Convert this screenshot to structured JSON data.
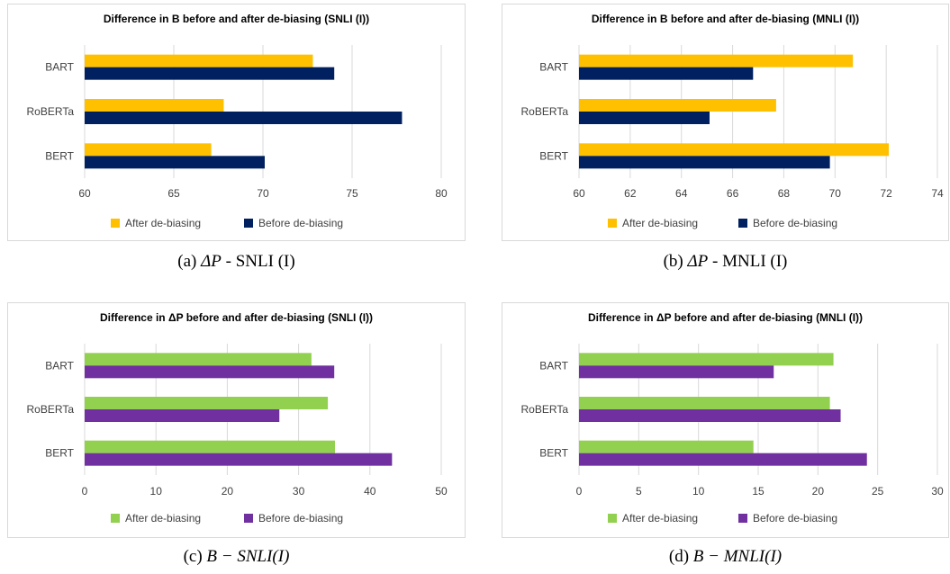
{
  "chart_data": [
    {
      "type": "bar",
      "orientation": "horizontal",
      "title": "Difference in B before and after de-biasing (SNLI (I))",
      "categories": [
        "BART",
        "RoBERTa",
        "BERT"
      ],
      "series": [
        {
          "name": "After de-biasing",
          "values": [
            72.8,
            67.8,
            67.1
          ],
          "color": "#FFC000"
        },
        {
          "name": "Before de-biasing",
          "values": [
            74.0,
            77.8,
            70.1
          ],
          "color": "#002060"
        }
      ],
      "xlim": [
        60,
        80
      ],
      "xticks": [
        60,
        65,
        70,
        75,
        80
      ],
      "grid": "vertical",
      "legend": "bottom",
      "caption_prefix": "(a) ",
      "caption_math": "ΔP",
      "caption_suffix": " - SNLI (I)"
    },
    {
      "type": "bar",
      "orientation": "horizontal",
      "title": "Difference in B before and after de-biasing (MNLI (I))",
      "categories": [
        "BART",
        "RoBERTa",
        "BERT"
      ],
      "series": [
        {
          "name": "After de-biasing",
          "values": [
            70.7,
            67.7,
            72.1
          ],
          "color": "#FFC000"
        },
        {
          "name": "Before de-biasing",
          "values": [
            66.8,
            65.1,
            69.8
          ],
          "color": "#002060"
        }
      ],
      "xlim": [
        60,
        74
      ],
      "xticks": [
        60,
        62,
        64,
        66,
        68,
        70,
        72,
        74
      ],
      "grid": "vertical",
      "legend": "bottom",
      "caption_prefix": "(b) ",
      "caption_math": "ΔP",
      "caption_suffix": " - MNLI (I)"
    },
    {
      "type": "bar",
      "orientation": "horizontal",
      "title": "Difference in ΔP before and after de-biasing (SNLI (I))",
      "categories": [
        "BART",
        "RoBERTa",
        "BERT"
      ],
      "series": [
        {
          "name": "After de-biasing",
          "values": [
            31.8,
            34.1,
            35.1
          ],
          "color": "#92D050"
        },
        {
          "name": "Before de-biasing",
          "values": [
            35.0,
            27.3,
            43.1
          ],
          "color": "#7030A0"
        }
      ],
      "xlim": [
        0,
        50
      ],
      "xticks": [
        0,
        10,
        20,
        30,
        40,
        50
      ],
      "grid": "vertical",
      "legend": "bottom",
      "caption_prefix": "(c) ",
      "caption_math": "B − SNLI(I)",
      "caption_suffix": ""
    },
    {
      "type": "bar",
      "orientation": "horizontal",
      "title": "Difference in ΔP before and after de-biasing (MNLI (I))",
      "categories": [
        "BART",
        "RoBERTa",
        "BERT"
      ],
      "series": [
        {
          "name": "After de-biasing",
          "values": [
            21.3,
            21.0,
            14.6
          ],
          "color": "#92D050"
        },
        {
          "name": "Before de-biasing",
          "values": [
            16.3,
            21.9,
            24.1
          ],
          "color": "#7030A0"
        }
      ],
      "xlim": [
        0,
        30
      ],
      "xticks": [
        0,
        5,
        10,
        15,
        20,
        25,
        30
      ],
      "grid": "vertical",
      "legend": "bottom",
      "caption_prefix": "(d) ",
      "caption_math": "B − MNLI(I)",
      "caption_suffix": ""
    }
  ]
}
